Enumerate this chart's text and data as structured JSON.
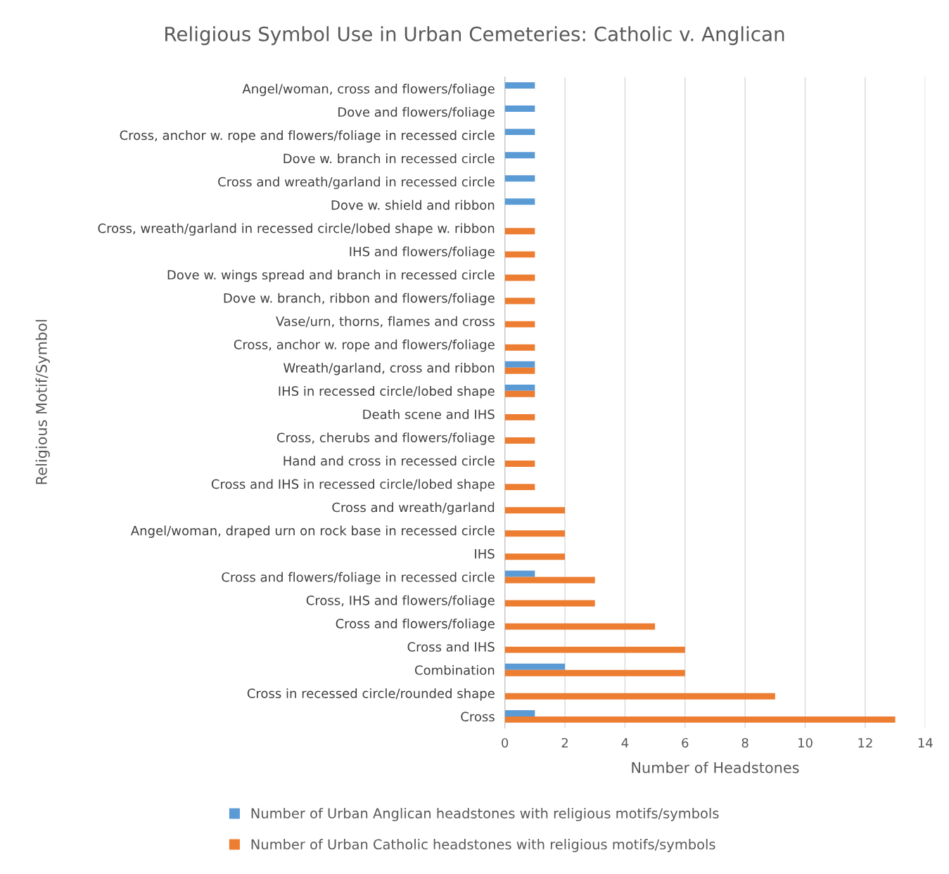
{
  "chart_data": {
    "type": "bar",
    "orientation": "horizontal",
    "title": "Religious Symbol Use in Urban Cemeteries: Catholic v. Anglican",
    "xlabel": "Number of Headstones",
    "ylabel": "Religious Motif/Symbol",
    "categories": [
      "Angel/woman, cross and flowers/foliage",
      "Dove and flowers/foliage",
      "Cross, anchor w. rope and flowers/foliage in recessed circle",
      "Dove w. branch in recessed circle",
      "Cross and wreath/garland in recessed circle",
      "Dove w. shield and ribbon",
      "Cross, wreath/garland in recessed circle/lobed shape w. ribbon",
      "IHS and flowers/foliage",
      "Dove w. wings spread and branch in recessed circle",
      "Dove w. branch, ribbon and flowers/foliage",
      "Vase/urn, thorns, flames and cross",
      "Cross, anchor w. rope and flowers/foliage",
      "Wreath/garland, cross and ribbon",
      "IHS in recessed circle/lobed shape",
      "Death scene and IHS",
      "Cross, cherubs and flowers/foliage",
      "Hand and cross in recessed circle",
      "Cross and IHS in recessed circle/lobed shape",
      "Cross and wreath/garland",
      "Angel/woman, draped urn on rock base in recessed circle",
      "IHS",
      "Cross and flowers/foliage in recessed circle",
      "Cross, IHS and flowers/foliage",
      "Cross and flowers/foliage",
      "Cross and IHS",
      "Combination",
      "Cross in recessed circle/rounded shape",
      "Cross"
    ],
    "series": [
      {
        "name": "Number of Urban Anglican headstones with religious motifs/symbols",
        "color": "#5b9bd5",
        "values": [
          1,
          1,
          1,
          1,
          1,
          1,
          null,
          null,
          null,
          null,
          null,
          null,
          1,
          1,
          null,
          null,
          null,
          null,
          null,
          null,
          null,
          1,
          null,
          null,
          null,
          2,
          null,
          1
        ]
      },
      {
        "name": "Number of Urban Catholic headstones with religious motifs/symbols",
        "color": "#ed7d31",
        "values": [
          null,
          null,
          null,
          null,
          null,
          null,
          1,
          1,
          1,
          1,
          1,
          1,
          1,
          1,
          1,
          1,
          1,
          1,
          2,
          2,
          2,
          3,
          3,
          5,
          6,
          6,
          9,
          13
        ]
      }
    ],
    "xlim": [
      0,
      14
    ],
    "xticks": [
      0,
      2,
      4,
      6,
      8,
      10,
      12,
      14
    ],
    "grid": "x",
    "legend": "bottom"
  }
}
